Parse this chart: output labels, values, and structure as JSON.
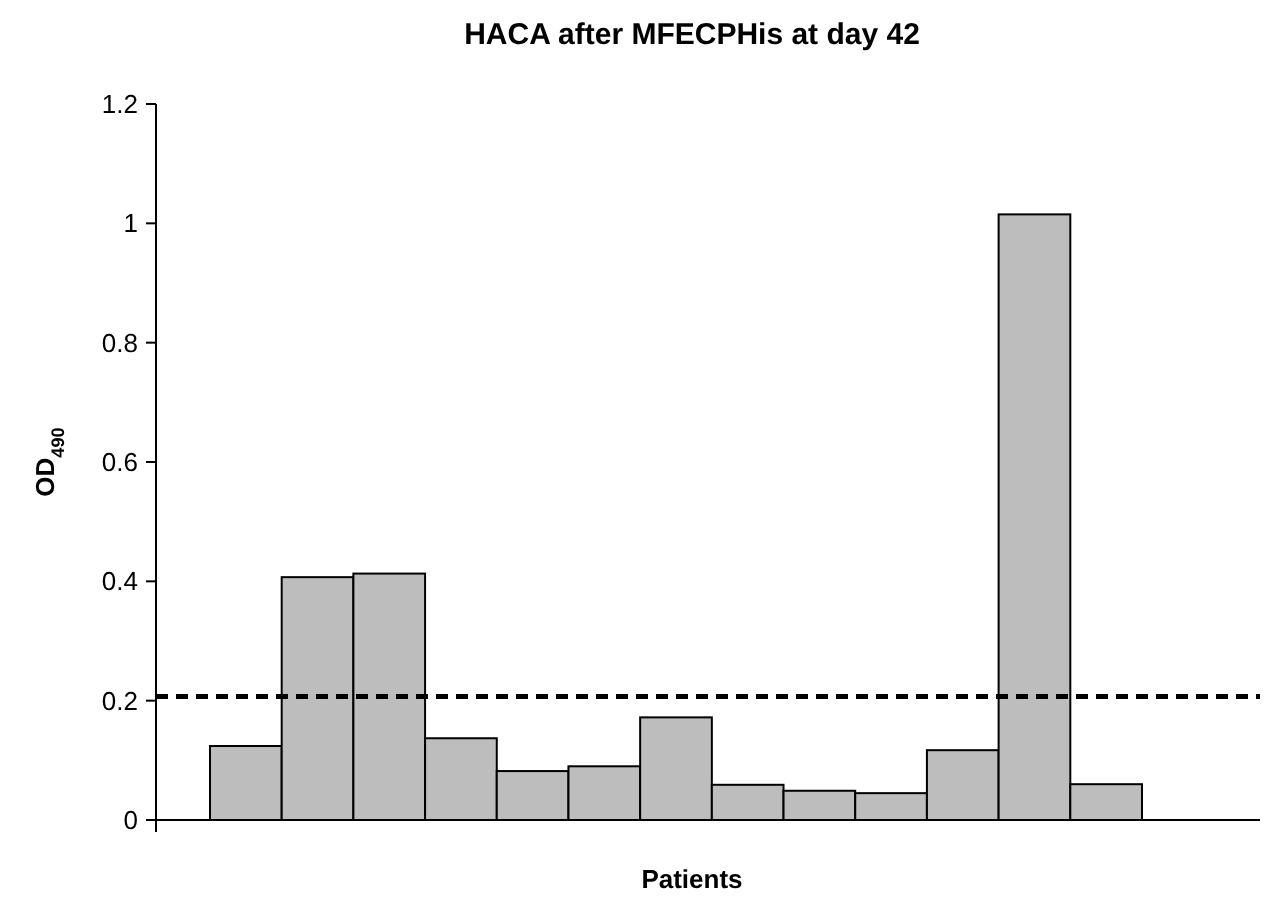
{
  "chart_data": {
    "type": "bar",
    "title": "HACA after MFECPHis at day 42",
    "xlabel": "Patients",
    "ylabel": "OD$_{490}$",
    "categories": [
      null,
      null,
      null,
      null,
      null,
      null,
      null,
      null,
      null,
      null,
      null,
      null,
      null
    ],
    "values": [
      0.124,
      0.407,
      0.413,
      0.137,
      0.082,
      0.09,
      0.172,
      0.059,
      0.049,
      0.045,
      0.117,
      1.015,
      0.06
    ],
    "color": "#bdbdbd",
    "ylim": [
      0,
      1.2
    ],
    "yticks": [
      0,
      0.2,
      0.4,
      0.6,
      0.8,
      1,
      1.2
    ],
    "ref_lines": [
      {
        "axis": "y",
        "value": 0.207,
        "color": "#000000",
        "line_style": "dashed"
      }
    ],
    "grid": false
  }
}
